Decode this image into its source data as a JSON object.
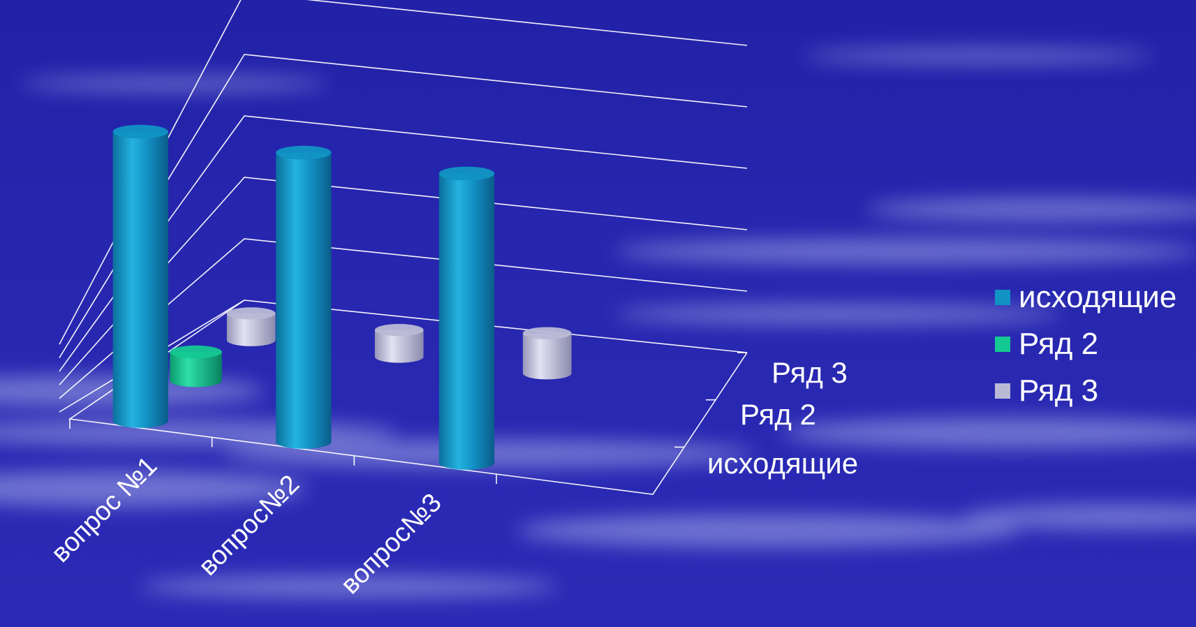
{
  "chart_data": {
    "type": "bar",
    "subtype": "3d-cylinder",
    "categories": [
      "вопрос №1",
      "вопрос№2",
      "вопрос№3"
    ],
    "series": [
      {
        "name": "исходящие",
        "color": "#1193c4",
        "values": [
          0.95,
          0.95,
          0.95
        ]
      },
      {
        "name": "Ряд 2",
        "color": "#14c891",
        "values": [
          0.1,
          0,
          0
        ]
      },
      {
        "name": "Ряд 3",
        "color": "#b9b9d6",
        "values": [
          0.1,
          0.1,
          0.15
        ]
      }
    ],
    "depth_labels": [
      "Ряд 3",
      "Ряд 2",
      "исходящие"
    ],
    "legend": {
      "position": "right"
    },
    "grid": true,
    "background": "#2020a8"
  }
}
